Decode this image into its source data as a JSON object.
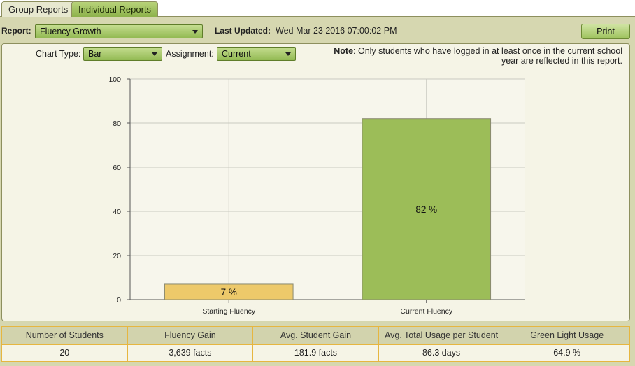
{
  "tabs": [
    {
      "label": "Group Reports"
    },
    {
      "label": "Individual Reports"
    }
  ],
  "toolbar": {
    "report_label": "Report:",
    "report_value": "Fluency Growth",
    "last_updated_label": "Last Updated:",
    "last_updated_value": "Wed Mar 23 2016 07:00:02 PM",
    "print_label": "Print"
  },
  "filters": {
    "chart_type_label": "Chart Type:",
    "chart_type_value": "Bar",
    "assignment_label": "Assignment:",
    "assignment_value": "Current"
  },
  "note": {
    "prefix": "Note",
    "text": ": Only students who have logged in at least once in the current school year are reflected in this report."
  },
  "chart_data": {
    "type": "bar",
    "categories": [
      "Starting Fluency",
      "Current Fluency"
    ],
    "values": [
      7,
      82
    ],
    "data_labels": [
      "7 %",
      "82 %"
    ],
    "colors": [
      "#edc96a",
      "#9cbd58"
    ],
    "ylim": [
      0,
      100
    ],
    "yticks": [
      "0",
      "20",
      "40",
      "60",
      "80",
      "100"
    ],
    "title": "",
    "xlabel": "",
    "ylabel": "",
    "grid": true
  },
  "stats": {
    "headers": [
      "Number of Students",
      "Fluency Gain",
      "Avg. Student Gain",
      "Avg. Total Usage per Student",
      "Green Light Usage"
    ],
    "values": [
      "20",
      "3,639 facts",
      "181.9 facts",
      "86.3 days",
      "64.9 %"
    ]
  }
}
